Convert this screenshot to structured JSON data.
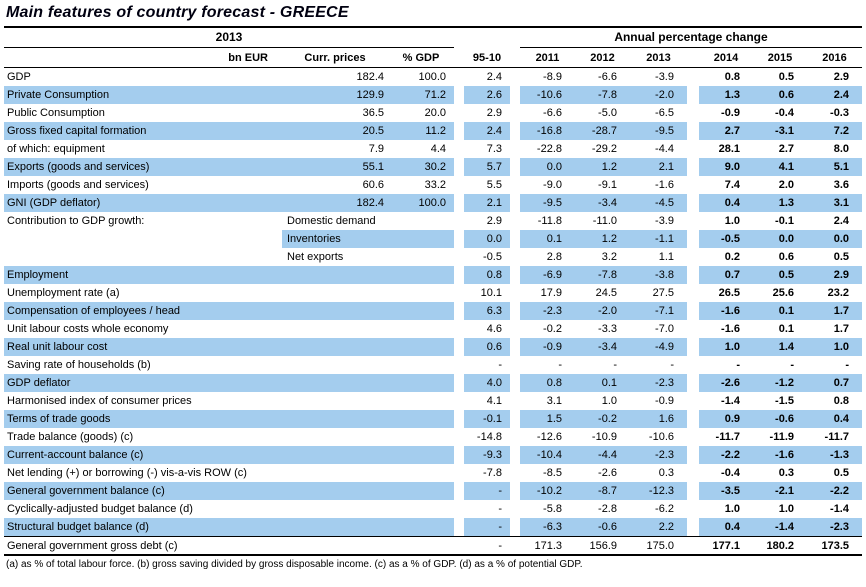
{
  "title": "Main features of country forecast - GREECE",
  "colors": {
    "row_highlight": "#a4cdee",
    "rule": "#000000"
  },
  "header": {
    "group_2013": "2013",
    "group_apc": "Annual percentage change",
    "col_bn_eur": "bn EUR",
    "col_curr_prices": "Curr. prices",
    "col_pct_gdp": "% GDP",
    "col_avg": "95-10",
    "years": [
      "2011",
      "2012",
      "2013",
      "2014",
      "2015",
      "2016"
    ]
  },
  "table": {
    "rows": [
      {
        "label": "GDP",
        "curr": "182.4",
        "gdp": "100.0",
        "avg": "2.4",
        "years": [
          "-8.9",
          "-6.6",
          "-3.9",
          "0.8",
          "0.5",
          "2.9"
        ],
        "shade": false
      },
      {
        "label": "Private Consumption",
        "curr": "129.9",
        "gdp": "71.2",
        "avg": "2.6",
        "years": [
          "-10.6",
          "-7.8",
          "-2.0",
          "1.3",
          "0.6",
          "2.4"
        ],
        "shade": true
      },
      {
        "label": "Public Consumption",
        "curr": "36.5",
        "gdp": "20.0",
        "avg": "2.9",
        "years": [
          "-6.6",
          "-5.0",
          "-6.5",
          "-0.9",
          "-0.4",
          "-0.3"
        ],
        "shade": false
      },
      {
        "label": "Gross fixed capital formation",
        "curr": "20.5",
        "gdp": "11.2",
        "avg": "2.4",
        "years": [
          "-16.8",
          "-28.7",
          "-9.5",
          "2.7",
          "-3.1",
          "7.2"
        ],
        "shade": true
      },
      {
        "label": "of which: equipment",
        "curr": "7.9",
        "gdp": "4.4",
        "avg": "7.3",
        "years": [
          "-22.8",
          "-29.2",
          "-4.4",
          "28.1",
          "2.7",
          "8.0"
        ],
        "shade": false
      },
      {
        "label": "Exports (goods and services)",
        "curr": "55.1",
        "gdp": "30.2",
        "avg": "5.7",
        "years": [
          "0.0",
          "1.2",
          "2.1",
          "9.0",
          "4.1",
          "5.1"
        ],
        "shade": true
      },
      {
        "label": "Imports (goods and services)",
        "curr": "60.6",
        "gdp": "33.2",
        "avg": "5.5",
        "years": [
          "-9.0",
          "-9.1",
          "-1.6",
          "7.4",
          "2.0",
          "3.6"
        ],
        "shade": false
      },
      {
        "label": "GNI (GDP deflator)",
        "curr": "182.4",
        "gdp": "100.0",
        "avg": "2.1",
        "years": [
          "-9.5",
          "-3.4",
          "-4.5",
          "0.4",
          "1.3",
          "3.1"
        ],
        "shade": true
      },
      {
        "label": "Contribution to GDP growth:",
        "sublabel": "Domestic demand",
        "avg": "2.9",
        "years": [
          "-11.8",
          "-11.0",
          "-3.9",
          "1.0",
          "-0.1",
          "2.4"
        ],
        "shade": false
      },
      {
        "label": "",
        "sublabel": "Inventories",
        "avg": "0.0",
        "years": [
          "0.1",
          "1.2",
          "-1.1",
          "-0.5",
          "0.0",
          "0.0"
        ],
        "shade": true,
        "label_plain": true
      },
      {
        "label": "",
        "sublabel": "Net exports",
        "avg": "-0.5",
        "years": [
          "2.8",
          "3.2",
          "1.1",
          "0.2",
          "0.6",
          "0.5"
        ],
        "shade": false,
        "label_plain": true
      },
      {
        "label": "Employment",
        "curr": "",
        "gdp": "",
        "avg": "0.8",
        "years": [
          "-6.9",
          "-7.8",
          "-3.8",
          "0.7",
          "0.5",
          "2.9"
        ],
        "shade": true
      },
      {
        "label": "Unemployment rate (a)",
        "curr": "",
        "gdp": "",
        "avg": "10.1",
        "years": [
          "17.9",
          "24.5",
          "27.5",
          "26.5",
          "25.6",
          "23.2"
        ],
        "shade": false
      },
      {
        "label": "Compensation of employees / head",
        "curr": "",
        "gdp": "",
        "avg": "6.3",
        "years": [
          "-2.3",
          "-2.0",
          "-7.1",
          "-1.6",
          "0.1",
          "1.7"
        ],
        "shade": true
      },
      {
        "label": "Unit labour costs whole economy",
        "curr": "",
        "gdp": "",
        "avg": "4.6",
        "years": [
          "-0.2",
          "-3.3",
          "-7.0",
          "-1.6",
          "0.1",
          "1.7"
        ],
        "shade": false
      },
      {
        "label": "Real unit labour cost",
        "curr": "",
        "gdp": "",
        "avg": "0.6",
        "years": [
          "-0.9",
          "-3.4",
          "-4.9",
          "1.0",
          "1.4",
          "1.0"
        ],
        "shade": true
      },
      {
        "label": "Saving rate of households (b)",
        "curr": "",
        "gdp": "",
        "avg": "-",
        "years": [
          "-",
          "-",
          "-",
          "-",
          "-",
          "-"
        ],
        "shade": false
      },
      {
        "label": "GDP deflator",
        "curr": "",
        "gdp": "",
        "avg": "4.0",
        "years": [
          "0.8",
          "0.1",
          "-2.3",
          "-2.6",
          "-1.2",
          "0.7"
        ],
        "shade": true
      },
      {
        "label": "Harmonised index of consumer prices",
        "curr": "",
        "gdp": "",
        "avg": "4.1",
        "years": [
          "3.1",
          "1.0",
          "-0.9",
          "-1.4",
          "-1.5",
          "0.8"
        ],
        "shade": false
      },
      {
        "label": "Terms of trade goods",
        "curr": "",
        "gdp": "",
        "avg": "-0.1",
        "years": [
          "1.5",
          "-0.2",
          "1.6",
          "0.9",
          "-0.6",
          "0.4"
        ],
        "shade": true
      },
      {
        "label": "Trade balance (goods) (c)",
        "curr": "",
        "gdp": "",
        "avg": "-14.8",
        "years": [
          "-12.6",
          "-10.9",
          "-10.6",
          "-11.7",
          "-11.9",
          "-11.7"
        ],
        "shade": false
      },
      {
        "label": "Current-account balance (c)",
        "curr": "",
        "gdp": "",
        "avg": "-9.3",
        "years": [
          "-10.4",
          "-4.4",
          "-2.3",
          "-2.2",
          "-1.6",
          "-1.3"
        ],
        "shade": true
      },
      {
        "label": "Net lending (+) or borrowing (-) vis-a-vis ROW (c)",
        "curr": "",
        "gdp": "",
        "avg": "-7.8",
        "years": [
          "-8.5",
          "-2.6",
          "0.3",
          "-0.4",
          "0.3",
          "0.5"
        ],
        "shade": false
      },
      {
        "label": "General government balance (c)",
        "curr": "",
        "gdp": "",
        "avg": "-",
        "years": [
          "-10.2",
          "-8.7",
          "-12.3",
          "-3.5",
          "-2.1",
          "-2.2"
        ],
        "shade": true
      },
      {
        "label": "Cyclically-adjusted budget balance (d)",
        "curr": "",
        "gdp": "",
        "avg": "-",
        "years": [
          "-5.8",
          "-2.8",
          "-6.2",
          "1.0",
          "1.0",
          "-1.4"
        ],
        "shade": false
      },
      {
        "label": "Structural budget balance (d)",
        "curr": "",
        "gdp": "",
        "avg": "-",
        "years": [
          "-6.3",
          "-0.6",
          "2.2",
          "0.4",
          "-1.4",
          "-2.3"
        ],
        "shade": true
      },
      {
        "label": "General government gross debt (c)",
        "curr": "",
        "gdp": "",
        "avg": "-",
        "years": [
          "171.3",
          "156.9",
          "175.0",
          "177.1",
          "180.2",
          "173.5"
        ],
        "shade": false,
        "topline": true
      }
    ]
  },
  "footnote": "(a) as % of total labour force. (b) gross saving divided by gross disposable income. (c) as a % of GDP. (d) as a % of potential GDP."
}
